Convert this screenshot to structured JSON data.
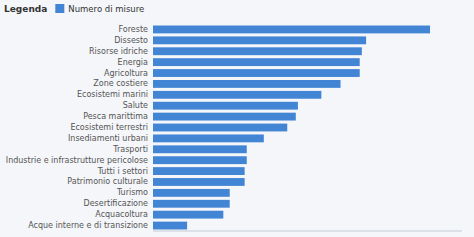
{
  "chart_data": {
    "type": "bar",
    "orientation": "horizontal",
    "categories": [
      "Foreste",
      "Dissesto",
      "Risorse idriche",
      "Energia",
      "Agricoltura",
      "Zone costiere",
      "Ecosistemi marini",
      "Salute",
      "Pesca marittima",
      "Ecosistemi terrestri",
      "Insediamenti urbani",
      "Trasporti",
      "Industrie e infrastrutture pericolose",
      "Tutti i settori",
      "Patrimonio culturale",
      "Turismo",
      "Desertificazione",
      "Acquacoltura",
      "Acque interne e di transizione"
    ],
    "series": [
      {
        "name": "Numero di misure",
        "color": "#4285d4",
        "values": [
          130,
          100,
          98,
          97,
          97,
          88,
          79,
          68,
          67,
          63,
          52,
          44,
          44,
          43,
          43,
          36,
          36,
          33,
          16
        ]
      }
    ],
    "xlim": [
      0,
      145
    ],
    "legend_title": "Legenda",
    "legend": "upper left",
    "grid": false,
    "tick_labels": "y"
  }
}
